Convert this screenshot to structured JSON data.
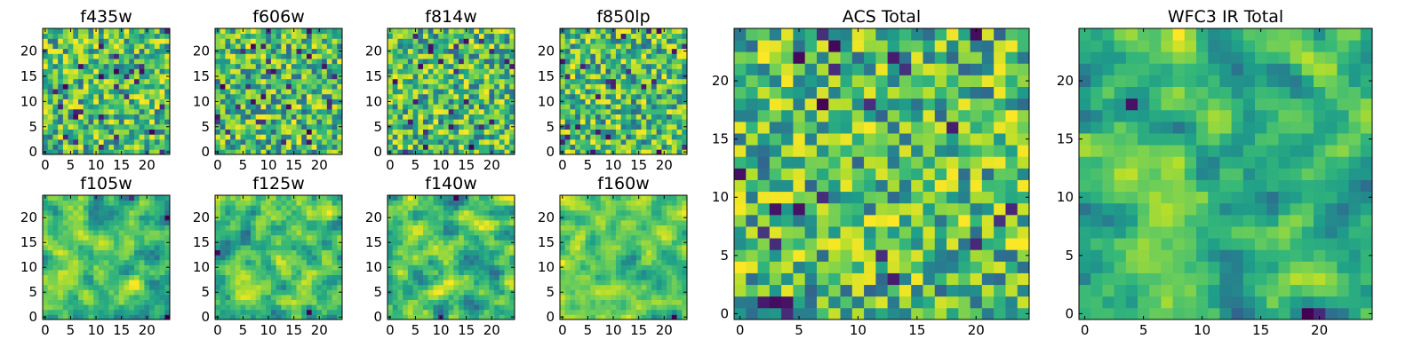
{
  "chart_data": [
    {
      "type": "heatmap",
      "title": "f435w",
      "grid_size": [
        25,
        25
      ],
      "colormap": "viridis",
      "xlim": [
        -0.5,
        24.5
      ],
      "ylim": [
        -0.5,
        24.5
      ],
      "xticks": [
        0,
        5,
        10,
        15,
        20
      ],
      "yticks": [
        0,
        5,
        10,
        15,
        20
      ],
      "xticklabels": [
        "0",
        "5",
        "10",
        "15",
        "20"
      ],
      "yticklabels": [
        "0",
        "5",
        "10",
        "15",
        "20"
      ],
      "texture": "fine-noise",
      "seed": 11
    },
    {
      "type": "heatmap",
      "title": "f606w",
      "grid_size": [
        25,
        25
      ],
      "colormap": "viridis",
      "xlim": [
        -0.5,
        24.5
      ],
      "ylim": [
        -0.5,
        24.5
      ],
      "xticks": [
        0,
        5,
        10,
        15,
        20
      ],
      "yticks": [
        0,
        5,
        10,
        15,
        20
      ],
      "xticklabels": [
        "0",
        "5",
        "10",
        "15",
        "20"
      ],
      "yticklabels": [
        "0",
        "5",
        "10",
        "15",
        "20"
      ],
      "texture": "fine-noise",
      "seed": 23
    },
    {
      "type": "heatmap",
      "title": "f814w",
      "grid_size": [
        25,
        25
      ],
      "colormap": "viridis",
      "xlim": [
        -0.5,
        24.5
      ],
      "ylim": [
        -0.5,
        24.5
      ],
      "xticks": [
        0,
        5,
        10,
        15,
        20
      ],
      "yticks": [
        0,
        5,
        10,
        15,
        20
      ],
      "xticklabels": [
        "0",
        "5",
        "10",
        "15",
        "20"
      ],
      "yticklabels": [
        "0",
        "5",
        "10",
        "15",
        "20"
      ],
      "texture": "fine-noise",
      "seed": 37
    },
    {
      "type": "heatmap",
      "title": "f850lp",
      "grid_size": [
        25,
        25
      ],
      "colormap": "viridis",
      "xlim": [
        -0.5,
        24.5
      ],
      "ylim": [
        -0.5,
        24.5
      ],
      "xticks": [
        0,
        5,
        10,
        15,
        20
      ],
      "yticks": [
        0,
        5,
        10,
        15,
        20
      ],
      "xticklabels": [
        "0",
        "5",
        "10",
        "15",
        "20"
      ],
      "yticklabels": [
        "0",
        "5",
        "10",
        "15",
        "20"
      ],
      "texture": "fine-noise",
      "seed": 41
    },
    {
      "type": "heatmap",
      "title": "f105w",
      "grid_size": [
        25,
        25
      ],
      "colormap": "viridis",
      "xlim": [
        -0.5,
        24.5
      ],
      "ylim": [
        -0.5,
        24.5
      ],
      "xticks": [
        0,
        5,
        10,
        15,
        20
      ],
      "yticks": [
        0,
        5,
        10,
        15,
        20
      ],
      "xticklabels": [
        "0",
        "5",
        "10",
        "15",
        "20"
      ],
      "yticklabels": [
        "0",
        "5",
        "10",
        "15",
        "20"
      ],
      "texture": "smooth-noise",
      "seed": 53
    },
    {
      "type": "heatmap",
      "title": "f125w",
      "grid_size": [
        25,
        25
      ],
      "colormap": "viridis",
      "xlim": [
        -0.5,
        24.5
      ],
      "ylim": [
        -0.5,
        24.5
      ],
      "xticks": [
        0,
        5,
        10,
        15,
        20
      ],
      "yticks": [
        0,
        5,
        10,
        15,
        20
      ],
      "xticklabels": [
        "0",
        "5",
        "10",
        "15",
        "20"
      ],
      "yticklabels": [
        "0",
        "5",
        "10",
        "15",
        "20"
      ],
      "texture": "smooth-noise",
      "seed": 67
    },
    {
      "type": "heatmap",
      "title": "f140w",
      "grid_size": [
        25,
        25
      ],
      "colormap": "viridis",
      "xlim": [
        -0.5,
        24.5
      ],
      "ylim": [
        -0.5,
        24.5
      ],
      "xticks": [
        0,
        5,
        10,
        15,
        20
      ],
      "yticks": [
        0,
        5,
        10,
        15,
        20
      ],
      "xticklabels": [
        "0",
        "5",
        "10",
        "15",
        "20"
      ],
      "yticklabels": [
        "0",
        "5",
        "10",
        "15",
        "20"
      ],
      "texture": "smooth-noise",
      "seed": 71
    },
    {
      "type": "heatmap",
      "title": "f160w",
      "grid_size": [
        25,
        25
      ],
      "colormap": "viridis",
      "xlim": [
        -0.5,
        24.5
      ],
      "ylim": [
        -0.5,
        24.5
      ],
      "xticks": [
        0,
        5,
        10,
        15,
        20
      ],
      "yticks": [
        0,
        5,
        10,
        15,
        20
      ],
      "xticklabels": [
        "0",
        "5",
        "10",
        "15",
        "20"
      ],
      "yticklabels": [
        "0",
        "5",
        "10",
        "15",
        "20"
      ],
      "texture": "smooth-noise",
      "seed": 83
    },
    {
      "type": "heatmap",
      "title": "ACS Total",
      "grid_size": [
        25,
        25
      ],
      "colormap": "viridis",
      "xlim": [
        -0.5,
        24.5
      ],
      "ylim": [
        -0.5,
        24.5
      ],
      "xticks": [
        0,
        5,
        10,
        15,
        20
      ],
      "yticks": [
        0,
        5,
        10,
        15,
        20
      ],
      "xticklabels": [
        "0",
        "5",
        "10",
        "15",
        "20"
      ],
      "yticklabels": [
        "0",
        "5",
        "10",
        "15",
        "20"
      ],
      "texture": "fine-noise",
      "seed": 97
    },
    {
      "type": "heatmap",
      "title": "WFC3 IR Total",
      "grid_size": [
        25,
        25
      ],
      "colormap": "viridis",
      "xlim": [
        -0.5,
        24.5
      ],
      "ylim": [
        -0.5,
        24.5
      ],
      "xticks": [
        0,
        5,
        10,
        15,
        20
      ],
      "yticks": [
        0,
        5,
        10,
        15,
        20
      ],
      "xticklabels": [
        "0",
        "5",
        "10",
        "15",
        "20"
      ],
      "yticklabels": [
        "0",
        "5",
        "10",
        "15",
        "20"
      ],
      "texture": "smooth-noise",
      "seed": 101
    }
  ],
  "colors": {
    "viridis": [
      "#440154",
      "#482878",
      "#3e4989",
      "#31688e",
      "#26828e",
      "#1f9e89",
      "#35b779",
      "#6ece58",
      "#b5de2b",
      "#fde725"
    ]
  }
}
